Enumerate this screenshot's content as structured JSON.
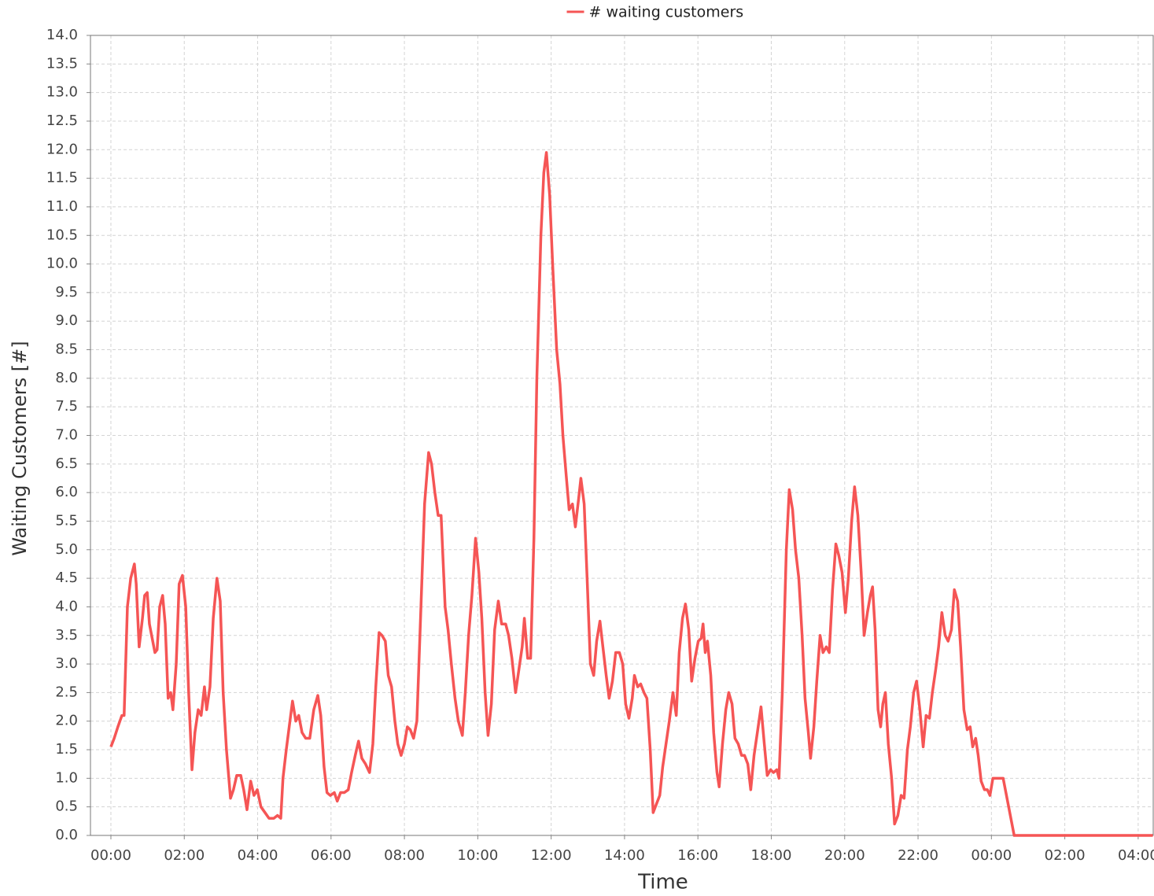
{
  "chart_data": {
    "type": "line",
    "legend": "top",
    "grid": true,
    "x_label": "Time",
    "y_label": "Waiting Customers [#]",
    "x": [
      0,
      0.09,
      0.19,
      0.3,
      0.36,
      0.45,
      0.54,
      0.64,
      0.69,
      0.77,
      0.86,
      0.92,
      0.99,
      1.05,
      1.14,
      1.2,
      1.26,
      1.33,
      1.41,
      1.48,
      1.56,
      1.63,
      1.69,
      1.78,
      1.86,
      1.95,
      2.04,
      2.12,
      2.21,
      2.29,
      2.38,
      2.46,
      2.55,
      2.61,
      2.7,
      2.79,
      2.89,
      2.98,
      3.06,
      3.15,
      3.26,
      3.34,
      3.43,
      3.54,
      3.62,
      3.71,
      3.81,
      3.9,
      3.99,
      4.09,
      4.2,
      4.31,
      4.44,
      4.54,
      4.63,
      4.69,
      4.78,
      4.86,
      4.95,
      5.04,
      5.12,
      5.21,
      5.31,
      5.42,
      5.53,
      5.64,
      5.72,
      5.81,
      5.89,
      5.98,
      6.09,
      6.17,
      6.26,
      6.36,
      6.47,
      6.56,
      6.66,
      6.75,
      6.84,
      6.94,
      7.05,
      7.14,
      7.22,
      7.31,
      7.39,
      7.48,
      7.56,
      7.65,
      7.74,
      7.82,
      7.91,
      8.0,
      8.08,
      8.16,
      8.25,
      8.34,
      8.44,
      8.55,
      8.66,
      8.74,
      8.83,
      8.92,
      9.0,
      9.11,
      9.19,
      9.28,
      9.38,
      9.47,
      9.58,
      9.66,
      9.75,
      9.84,
      9.94,
      10.03,
      10.11,
      10.2,
      10.28,
      10.37,
      10.46,
      10.56,
      10.65,
      10.76,
      10.84,
      10.93,
      11.03,
      11.12,
      11.21,
      11.27,
      11.36,
      11.44,
      11.53,
      11.61,
      11.72,
      11.8,
      11.87,
      11.96,
      12.04,
      12.15,
      12.24,
      12.32,
      12.41,
      12.49,
      12.58,
      12.66,
      12.75,
      12.81,
      12.9,
      12.98,
      13.07,
      13.16,
      13.24,
      13.33,
      13.41,
      13.5,
      13.58,
      13.67,
      13.76,
      13.86,
      13.95,
      14.03,
      14.12,
      14.21,
      14.27,
      14.36,
      14.44,
      14.53,
      14.61,
      14.7,
      14.78,
      14.87,
      14.96,
      15.04,
      15.13,
      15.22,
      15.32,
      15.41,
      15.49,
      15.58,
      15.66,
      15.75,
      15.83,
      15.92,
      16.01,
      16.09,
      16.14,
      16.2,
      16.26,
      16.35,
      16.43,
      16.52,
      16.58,
      16.67,
      16.76,
      16.84,
      16.93,
      17.01,
      17.1,
      17.19,
      17.27,
      17.36,
      17.44,
      17.53,
      17.62,
      17.72,
      17.81,
      17.89,
      17.98,
      18.06,
      18.15,
      18.21,
      18.3,
      18.41,
      18.49,
      18.58,
      18.66,
      18.75,
      18.84,
      18.92,
      19.01,
      19.07,
      19.16,
      19.24,
      19.33,
      19.41,
      19.5,
      19.58,
      19.67,
      19.76,
      19.84,
      19.93,
      20.02,
      20.1,
      20.19,
      20.27,
      20.36,
      20.45,
      20.53,
      20.62,
      20.7,
      20.76,
      20.83,
      20.91,
      20.98,
      21.04,
      21.11,
      21.19,
      21.28,
      21.36,
      21.45,
      21.54,
      21.62,
      21.71,
      21.79,
      21.88,
      21.96,
      22.05,
      22.14,
      22.22,
      22.31,
      22.39,
      22.48,
      22.56,
      22.65,
      22.74,
      22.82,
      22.91,
      22.99,
      23.08,
      23.16,
      23.25,
      23.34,
      23.42,
      23.49,
      23.57,
      23.64,
      23.72,
      23.81,
      23.89,
      23.96,
      24.04,
      24.15,
      24.23,
      24.32,
      24.62,
      28.4
    ],
    "series": [
      {
        "name": "# waiting customers",
        "color": "#f55555",
        "values": [
          1.55,
          1.7,
          1.9,
          2.1,
          2.1,
          4.0,
          4.5,
          4.75,
          4.4,
          3.3,
          3.8,
          4.2,
          4.25,
          3.7,
          3.4,
          3.2,
          3.25,
          4.0,
          4.2,
          3.7,
          2.4,
          2.5,
          2.2,
          3.0,
          4.4,
          4.55,
          4.0,
          2.5,
          1.15,
          1.8,
          2.2,
          2.1,
          2.6,
          2.2,
          2.6,
          3.8,
          4.5,
          4.1,
          2.5,
          1.5,
          0.65,
          0.8,
          1.05,
          1.05,
          0.8,
          0.45,
          0.95,
          0.7,
          0.8,
          0.5,
          0.4,
          0.3,
          0.3,
          0.35,
          0.3,
          1.0,
          1.5,
          1.9,
          2.35,
          2.0,
          2.1,
          1.8,
          1.7,
          1.7,
          2.2,
          2.45,
          2.1,
          1.2,
          0.75,
          0.7,
          0.75,
          0.6,
          0.75,
          0.75,
          0.8,
          1.1,
          1.4,
          1.65,
          1.35,
          1.25,
          1.1,
          1.6,
          2.6,
          3.55,
          3.5,
          3.4,
          2.8,
          2.6,
          2.0,
          1.6,
          1.4,
          1.6,
          1.9,
          1.85,
          1.7,
          2.0,
          3.8,
          5.8,
          6.7,
          6.5,
          6.0,
          5.6,
          5.6,
          4.0,
          3.6,
          3.0,
          2.4,
          2.0,
          1.75,
          2.5,
          3.5,
          4.2,
          5.2,
          4.6,
          3.8,
          2.5,
          1.75,
          2.3,
          3.6,
          4.1,
          3.7,
          3.7,
          3.5,
          3.1,
          2.5,
          2.9,
          3.3,
          3.8,
          3.1,
          3.1,
          5.2,
          8.0,
          10.5,
          11.6,
          11.95,
          11.2,
          10.0,
          8.5,
          7.9,
          7.0,
          6.3,
          5.7,
          5.8,
          5.4,
          5.9,
          6.25,
          5.8,
          4.5,
          3.0,
          2.8,
          3.4,
          3.75,
          3.3,
          2.8,
          2.4,
          2.7,
          3.2,
          3.2,
          3.0,
          2.3,
          2.05,
          2.4,
          2.8,
          2.6,
          2.65,
          2.5,
          2.4,
          1.5,
          0.4,
          0.55,
          0.7,
          1.2,
          1.6,
          2.0,
          2.5,
          2.1,
          3.2,
          3.8,
          4.05,
          3.6,
          2.7,
          3.1,
          3.4,
          3.45,
          3.7,
          3.2,
          3.4,
          2.8,
          1.8,
          1.1,
          0.85,
          1.6,
          2.2,
          2.5,
          2.3,
          1.7,
          1.6,
          1.4,
          1.4,
          1.25,
          0.8,
          1.4,
          1.8,
          2.25,
          1.6,
          1.05,
          1.15,
          1.1,
          1.15,
          1.0,
          2.5,
          5.0,
          6.05,
          5.7,
          5.0,
          4.5,
          3.5,
          2.4,
          1.8,
          1.35,
          1.9,
          2.7,
          3.5,
          3.2,
          3.3,
          3.2,
          4.3,
          5.1,
          4.9,
          4.6,
          3.9,
          4.5,
          5.5,
          6.1,
          5.6,
          4.6,
          3.5,
          3.9,
          4.2,
          4.35,
          3.6,
          2.2,
          1.9,
          2.3,
          2.5,
          1.6,
          1.0,
          0.2,
          0.35,
          0.7,
          0.65,
          1.5,
          1.9,
          2.5,
          2.7,
          2.2,
          1.55,
          2.1,
          2.05,
          2.5,
          2.9,
          3.3,
          3.9,
          3.5,
          3.4,
          3.6,
          4.3,
          4.1,
          3.3,
          2.2,
          1.85,
          1.9,
          1.55,
          1.7,
          1.4,
          0.95,
          0.8,
          0.8,
          0.7,
          1.0,
          1.0,
          1.0,
          1.0,
          0.0,
          0.0
        ]
      }
    ],
    "xlim": [
      -0.557,
      28.41
    ],
    "xticks": [
      {
        "value": 0,
        "label": "00:00"
      },
      {
        "value": 2,
        "label": "02:00"
      },
      {
        "value": 4,
        "label": "04:00"
      },
      {
        "value": 6,
        "label": "06:00"
      },
      {
        "value": 8,
        "label": "08:00"
      },
      {
        "value": 10,
        "label": "10:00"
      },
      {
        "value": 12,
        "label": "12:00"
      },
      {
        "value": 14,
        "label": "14:00"
      },
      {
        "value": 16,
        "label": "16:00"
      },
      {
        "value": 18,
        "label": "18:00"
      },
      {
        "value": 20,
        "label": "20:00"
      },
      {
        "value": 22,
        "label": "22:00"
      },
      {
        "value": 24,
        "label": "00:00"
      },
      {
        "value": 26,
        "label": "02:00"
      },
      {
        "value": 28,
        "label": "04:00"
      }
    ],
    "ylim": [
      0,
      14
    ],
    "yticks": [
      {
        "value": 0,
        "label": "0.0"
      },
      0.5,
      {
        "value": 1,
        "label": "1.0"
      },
      1.5,
      {
        "value": 2,
        "label": "2.0"
      },
      2.5,
      {
        "value": 3,
        "label": "3.0"
      },
      3.5,
      {
        "value": 4,
        "label": "4.0"
      },
      4.5,
      {
        "value": 5,
        "label": "5.0"
      },
      5.5,
      {
        "value": 6,
        "label": "6.0"
      },
      6.5,
      {
        "value": 7,
        "label": "7.0"
      },
      7.5,
      {
        "value": 8,
        "label": "8.0"
      },
      8.5,
      {
        "value": 9,
        "label": "9.0"
      },
      9.5,
      {
        "value": 10,
        "label": "10.0"
      },
      10.5,
      {
        "value": 11,
        "label": "11.0"
      },
      11.5,
      {
        "value": 12,
        "label": "12.0"
      },
      12.5,
      {
        "value": 13,
        "label": "13.0"
      },
      13.5,
      {
        "value": 14,
        "label": "14.0"
      }
    ]
  }
}
